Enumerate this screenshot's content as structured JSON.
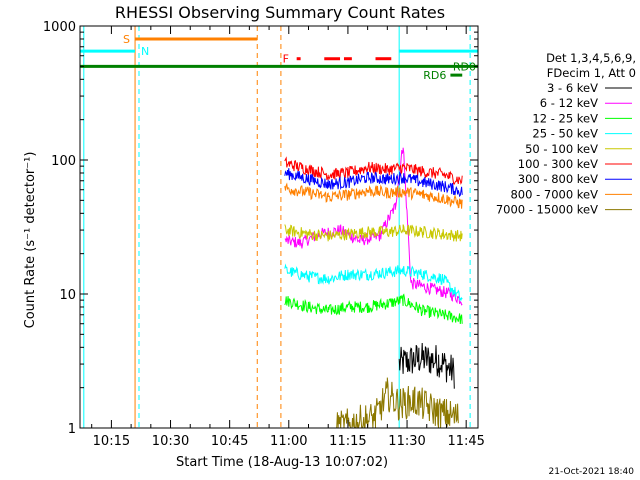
{
  "chart_data": {
    "type": "line",
    "title": "RHESSI Observing Summary Count Rates",
    "xlabel": "Start Time (18-Aug-13 10:07:02)",
    "ylabel": "Count Rate (s⁻¹ detector⁻¹)",
    "y_scale": "log",
    "ylim": [
      1,
      1000
    ],
    "xlim": [
      "10:07:02",
      "11:48:00"
    ],
    "x_ticks": [
      "10:15",
      "10:30",
      "10:45",
      "11:00",
      "11:15",
      "11:30",
      "11:45"
    ],
    "y_ticks": [
      "1",
      "10",
      "100",
      "1000"
    ],
    "legend_header": [
      "Det 1,3,4,5,6,9,",
      "FDecim 1, Att 0"
    ],
    "series": [
      {
        "name": "3 - 6 keV",
        "color": "#000000",
        "x": [
          "11:28",
          "11:33",
          "11:38",
          "11:42"
        ],
        "values": [
          3.0,
          3.3,
          3.2,
          2.6
        ]
      },
      {
        "name": "6 - 12 keV",
        "color": "#ff00ff",
        "x": [
          "10:59",
          "11:03",
          "11:08",
          "11:13",
          "11:18",
          "11:23",
          "11:27",
          "11:29",
          "11:31",
          "11:36",
          "11:41",
          "11:44"
        ],
        "values": [
          25,
          24,
          28,
          30,
          25,
          27,
          45,
          130,
          12,
          11,
          10,
          9
        ]
      },
      {
        "name": "12 - 25 keV",
        "color": "#00ff00",
        "x": [
          "10:59",
          "11:05",
          "11:10",
          "11:15",
          "11:20",
          "11:25",
          "11:29",
          "11:34",
          "11:39",
          "11:44"
        ],
        "values": [
          9,
          8,
          7.5,
          8,
          8,
          8.5,
          9,
          7.5,
          7,
          6.5
        ]
      },
      {
        "name": "25 - 50 keV",
        "color": "#00ffff",
        "x": [
          "10:59",
          "11:05",
          "11:10",
          "11:15",
          "11:20",
          "11:25",
          "11:29",
          "11:34",
          "11:39",
          "11:44"
        ],
        "values": [
          15,
          13.5,
          13,
          14,
          14,
          14.5,
          15,
          14,
          13,
          9
        ]
      },
      {
        "name": "50 - 100 keV",
        "color": "#c8c800",
        "x": [
          "10:59",
          "11:05",
          "11:10",
          "11:15",
          "11:20",
          "11:25",
          "11:29",
          "11:34",
          "11:39",
          "11:44"
        ],
        "values": [
          30,
          28,
          27,
          28,
          29,
          29,
          30,
          29,
          28,
          27
        ]
      },
      {
        "name": "100 - 300 keV",
        "color": "#ff0000",
        "x": [
          "10:59",
          "11:05",
          "11:10",
          "11:15",
          "11:20",
          "11:25",
          "11:29",
          "11:34",
          "11:39",
          "11:44"
        ],
        "values": [
          95,
          85,
          78,
          80,
          88,
          85,
          88,
          82,
          78,
          70
        ]
      },
      {
        "name": "300 - 800 keV",
        "color": "#0000ff",
        "x": [
          "10:59",
          "11:05",
          "11:10",
          "11:15",
          "11:20",
          "11:25",
          "11:29",
          "11:34",
          "11:39",
          "11:44"
        ],
        "values": [
          80,
          72,
          66,
          68,
          74,
          72,
          74,
          68,
          64,
          58
        ]
      },
      {
        "name": "800 - 7000 keV",
        "color": "#ff8000",
        "x": [
          "10:59",
          "11:05",
          "11:10",
          "11:15",
          "11:20",
          "11:25",
          "11:29",
          "11:34",
          "11:39",
          "11:44"
        ],
        "values": [
          62,
          57,
          53,
          55,
          59,
          57,
          58,
          55,
          52,
          47
        ]
      },
      {
        "name": "7000 - 15000 keV",
        "color": "#8c7800",
        "x": [
          "11:12",
          "11:22",
          "11:25",
          "11:28",
          "11:32",
          "11:38",
          "11:43"
        ],
        "values": [
          1.0,
          1.2,
          1.8,
          1.5,
          1.6,
          1.3,
          1.2
        ]
      }
    ],
    "flags": {
      "S": {
        "label": "S",
        "color": "#ff8000",
        "y": 800,
        "start": "10:21",
        "end": "10:52"
      },
      "N": {
        "label": "N",
        "color": "#00ffff",
        "y": 650,
        "spans": [
          [
            "10:07",
            "10:21"
          ],
          [
            "11:28",
            "11:48"
          ]
        ]
      },
      "SAA": {
        "color": "#008000",
        "y": 500,
        "start": "10:07",
        "end": "11:48"
      },
      "RD0": {
        "label": "RD0",
        "color": "#008000"
      },
      "RD6": {
        "label": "RD6",
        "color": "#008000",
        "y": 430,
        "start": "11:41",
        "end": "11:44"
      },
      "F": {
        "label": "F",
        "color": "#ff0000",
        "y": 570,
        "spans": [
          [
            "11:02",
            "11:03"
          ],
          [
            "11:09",
            "11:13"
          ],
          [
            "11:14",
            "11:16"
          ],
          [
            "11:22",
            "11:26"
          ]
        ]
      }
    },
    "vertical_lines": [
      {
        "time": "10:08",
        "color": "#00ffff",
        "style": "solid"
      },
      {
        "time": "10:21",
        "color": "#ff8000",
        "style": "solid"
      },
      {
        "time": "10:22",
        "color": "#00ffff",
        "style": "dashed"
      },
      {
        "time": "10:52",
        "color": "#ff8000",
        "style": "dashed"
      },
      {
        "time": "10:58",
        "color": "#ff8000",
        "style": "dashed"
      },
      {
        "time": "11:28",
        "color": "#00ffff",
        "style": "solid"
      },
      {
        "time": "11:46",
        "color": "#00ffff",
        "style": "dashed"
      }
    ]
  },
  "footer": {
    "timestamp": "21-Oct-2021 18:40"
  }
}
